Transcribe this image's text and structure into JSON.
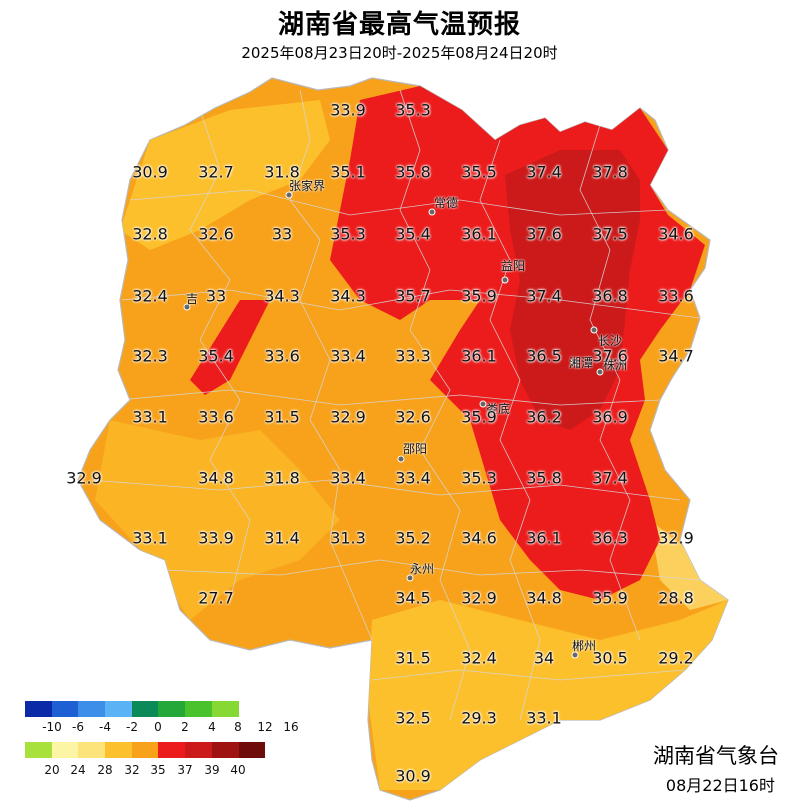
{
  "header": {
    "title": "湖南省最高气温预报",
    "subtitle": "2025年08月23日20时-2025年08月24日20时"
  },
  "footer": {
    "issuer": "湖南省气象台",
    "issue_time": "08月22日16时"
  },
  "colors": {
    "background": "#ffffff",
    "zone_28_32": "#fcc02c",
    "zone_32_35": "#f7a21a",
    "zone_35_37": "#ec1c1c",
    "zone_37_39": "#cc1a1a",
    "boundary": "#c8c8c8"
  },
  "cities": [
    {
      "name": "张家界"
    },
    {
      "name": "常德"
    },
    {
      "name": "益阳"
    },
    {
      "name": "长沙"
    },
    {
      "name": "湘潭"
    },
    {
      "name": "株洲"
    },
    {
      "name": "吉"
    },
    {
      "name": "娄底"
    },
    {
      "name": "邵阳"
    },
    {
      "name": "永州"
    },
    {
      "name": "郴州"
    }
  ],
  "grid_values": [
    "33.9",
    "35.3",
    "30.9",
    "32.7",
    "31.8",
    "35.1",
    "35.8",
    "35.5",
    "37.4",
    "37.8",
    "32.8",
    "32.6",
    "33",
    "35.3",
    "35.4",
    "36.1",
    "37.6",
    "37.5",
    "34.6",
    "32.4",
    "33",
    "34.3",
    "34.3",
    "35.7",
    "35.9",
    "37.4",
    "36.8",
    "33.6",
    "32.3",
    "35.4",
    "33.6",
    "33.4",
    "33.3",
    "36.1",
    "36.5",
    "37.6",
    "34.7",
    "33.1",
    "33.6",
    "31.5",
    "32.9",
    "32.6",
    "35.9",
    "36.2",
    "36.9",
    "32.9",
    "34.8",
    "31.8",
    "33.4",
    "33.4",
    "35.3",
    "35.8",
    "37.4",
    "33.1",
    "33.9",
    "31.4",
    "31.3",
    "35.2",
    "34.6",
    "36.1",
    "36.3",
    "32.9",
    "27.7",
    "34.5",
    "32.9",
    "34.8",
    "35.9",
    "28.8",
    "31.5",
    "32.4",
    "34",
    "30.5",
    "29.2",
    "32.5",
    "29.3",
    "33.1",
    "30.9"
  ],
  "legend": {
    "row1": {
      "colors": [
        "#0a2aa8",
        "#1f5fd4",
        "#3d8ee8",
        "#5ab3f5",
        "#0a8a58",
        "#25a83a",
        "#49c22e",
        "#86d932"
      ],
      "labels": [
        "-10",
        "-6",
        "-4",
        "-2",
        "0",
        "2",
        "4",
        "8",
        "12",
        "16"
      ]
    },
    "row2": {
      "colors": [
        "#a8e03c",
        "#fdf5a6",
        "#fde47a",
        "#fcc02c",
        "#f7a21a",
        "#ec1c1c",
        "#cc1a1a",
        "#9e1212",
        "#6e0c0c"
      ],
      "labels": [
        "20",
        "24",
        "28",
        "32",
        "35",
        "37",
        "39",
        "40"
      ]
    }
  }
}
